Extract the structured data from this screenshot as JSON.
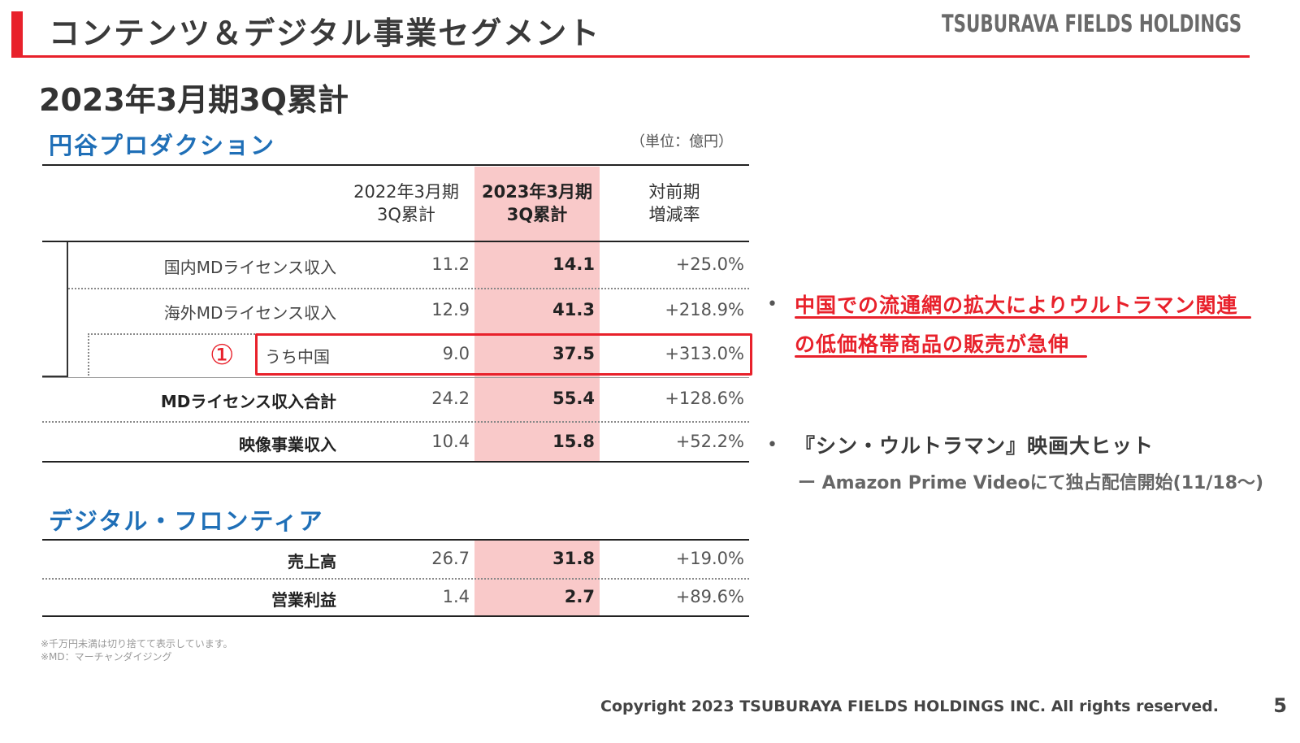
{
  "header": {
    "title": "コンテンツ＆デジタル事業セグメント",
    "company": "TSUBURAVA FIELDS HOLDINGS",
    "accent_color": "#e8212b"
  },
  "period_heading": "2023年3月期3Q累計",
  "unit_note": "（単位：億円）",
  "tsuburaya_section": {
    "title": "円谷プロダクション",
    "col_prev": [
      "2022年3月期",
      "3Q累計"
    ],
    "col_curr": [
      "2023年3月期",
      "3Q累計"
    ],
    "col_chg": [
      "対前期",
      "増減率"
    ],
    "rows": [
      {
        "label": "国内MDライセンス収入",
        "prev": "11.2",
        "curr": "14.1",
        "chg": "+25.0%"
      },
      {
        "label": "海外MDライセンス収入",
        "prev": "12.9",
        "curr": "41.3",
        "chg": "+218.9%"
      },
      {
        "label": "うち中国",
        "prev": "9.0",
        "curr": "37.5",
        "chg": "+313.0%"
      },
      {
        "label": "MDライセンス収入合計",
        "prev": "24.2",
        "curr": "55.4",
        "chg": "+128.6%"
      },
      {
        "label": "映像事業収入",
        "prev": "10.4",
        "curr": "15.8",
        "chg": "+52.2%"
      }
    ],
    "marker": "①",
    "highlight_color": "#f9c9c9"
  },
  "digital_section": {
    "title": "デジタル・フロンティア",
    "rows": [
      {
        "label": "売上高",
        "prev": "26.7",
        "curr": "31.8",
        "chg": "+19.0%"
      },
      {
        "label": "営業利益",
        "prev": "1.4",
        "curr": "2.7",
        "chg": "+89.6%"
      }
    ]
  },
  "bullets": {
    "marker": "•",
    "china_line1": "中国での流通網の拡大によりウルトラマン関連",
    "china_line2": "の低価格帯商品の販売が急伸",
    "movie_line1": "『シン・ウルトラマン』映画大ヒット",
    "movie_line2": "ー Amazon Prime Videoにて独占配信開始(11/18〜)"
  },
  "footnotes": {
    "line1": "※千万円未満は切り捨てて表示しています。",
    "line2": "※MD：マーチャンダイジング"
  },
  "footer": {
    "copyright": "Copyright 2023 TSUBURAYA FIELDS HOLDINGS INC. All rights reserved.",
    "page_number": "5"
  }
}
